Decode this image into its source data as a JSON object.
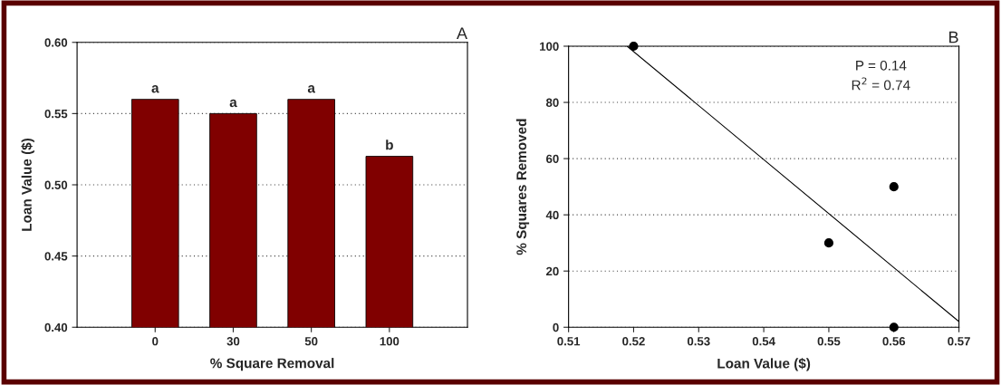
{
  "chart_data": [
    {
      "type": "bar",
      "title": "A",
      "xlabel": "% Square Removal",
      "ylabel": "Loan Value ($)",
      "categories": [
        "0",
        "30",
        "50",
        "100"
      ],
      "values": [
        0.56,
        0.55,
        0.56,
        0.52
      ],
      "color": "#800000",
      "ylim": [
        0.4,
        0.6
      ],
      "yticks": [
        {
          "value": 0.4,
          "label": "0.40"
        },
        {
          "value": 0.45,
          "label": "0.45"
        },
        {
          "value": 0.5,
          "label": "0.50"
        },
        {
          "value": 0.55,
          "label": "0.55"
        },
        {
          "value": 0.6,
          "label": "0.60"
        }
      ],
      "grid": "y",
      "annotations": [
        {
          "text": "a",
          "x": "0",
          "y": 0.56
        },
        {
          "text": "a",
          "x": "30",
          "y": 0.55
        },
        {
          "text": "a",
          "x": "50",
          "y": 0.56
        },
        {
          "text": "b",
          "x": "100",
          "y": 0.52
        }
      ]
    },
    {
      "type": "scatter",
      "title": "B",
      "xlabel": "Loan Value ($)",
      "ylabel": "% Squares Removed",
      "series": [
        {
          "type": "scatter",
          "color": "#000000",
          "marker": "circle",
          "x": [
            0.52,
            0.55,
            0.56,
            0.56
          ],
          "values": [
            100,
            30,
            50,
            0
          ]
        },
        {
          "type": "line",
          "color": "#000000",
          "marker": "none",
          "x": [
            0.519,
            0.57
          ],
          "values": [
            100,
            2
          ]
        }
      ],
      "xlim": [
        0.51,
        0.57
      ],
      "xticks": [
        0.51,
        0.52,
        0.53,
        0.54,
        0.55,
        0.56,
        0.57
      ],
      "ylim": [
        0,
        100
      ],
      "yticks": [
        0,
        20,
        40,
        60,
        80,
        100
      ],
      "grid": "y",
      "annotations": [
        "P = 0.14",
        "R$^{2}$ = 0.74"
      ]
    }
  ]
}
